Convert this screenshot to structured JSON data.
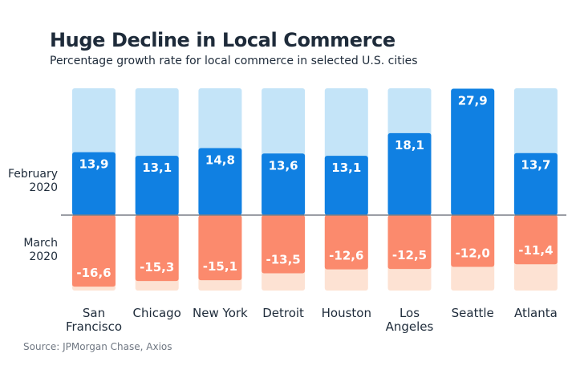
{
  "title": "Huge Decline in Local Commerce",
  "subtitle": "Percentage growth rate for local commerce in selected U.S. cities",
  "source": "Source: JPMorgan Chase, Axios",
  "colors": {
    "feb_bar": "#1080e2",
    "feb_bg": "#c4e4f8",
    "mar_bar": "#fb8a6d",
    "mar_bg": "#fde2d3",
    "value_text": "#ffffff",
    "axis": "#7a7f87"
  },
  "chart_data": {
    "type": "bar",
    "categories": [
      "San\nFrancisco",
      "Chicago",
      "New York",
      "Detroit",
      "Houston",
      "Los\nAngeles",
      "Seattle",
      "Atlanta"
    ],
    "row_labels": [
      "February\n2020",
      "March\n2020"
    ],
    "series": [
      {
        "name": "February 2020",
        "values": [
          13.9,
          13.1,
          14.8,
          13.6,
          13.1,
          18.1,
          27.9,
          13.7
        ],
        "labels": [
          "13,9",
          "13,1",
          "14,8",
          "13,6",
          "13,1",
          "18,1",
          "27,9",
          "13,7"
        ]
      },
      {
        "name": "March 2020",
        "values": [
          -16.6,
          -15.3,
          -15.1,
          -13.5,
          -12.6,
          -12.5,
          -12.0,
          -11.4
        ],
        "labels": [
          "-16,6",
          "-15,3",
          "-15,1",
          "-13,5",
          "-12,6",
          "-12,5",
          "-12,0",
          "-11,4"
        ]
      }
    ],
    "ylim": [
      -17.5,
      28
    ],
    "baseline": 0
  }
}
